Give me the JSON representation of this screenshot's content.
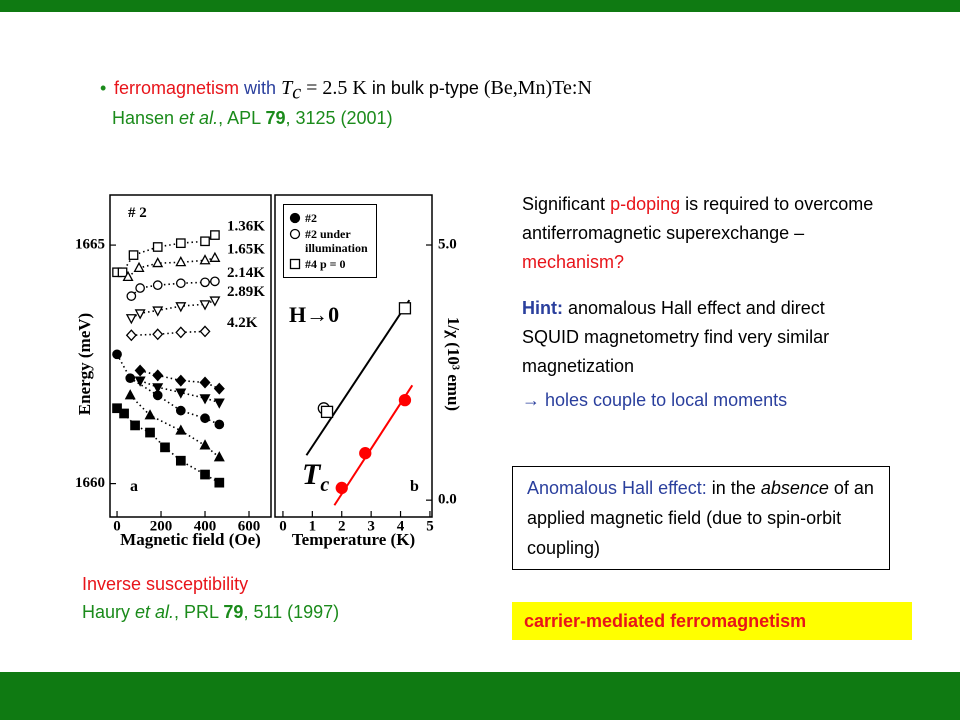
{
  "slide": {
    "bullet": [
      "ferromagnetism",
      " with ",
      "T",
      "c",
      " = 2.5 K",
      " in bulk p-type ",
      "(Be,Mn)Te:N"
    ],
    "citation_1": [
      "Hansen ",
      "et al.",
      ", APL ",
      "79",
      ", 3125 (2001)"
    ],
    "paragraph_1": [
      "Significant ",
      "p-doping",
      " is required to overcome antiferromagnetic superexchange – ",
      "mechanism?"
    ],
    "hint": [
      "Hint:",
      " anomalous Hall effect and direct SQUID magnetometry find very similar magnetization"
    ],
    "conclusion": "→ holes couple to local moments",
    "definition": [
      "Anomalous Hall effect:",
      " in the ",
      "absence",
      " of an applied magnetic field (due to spin-orbit coupling)"
    ],
    "highlight": "carrier-mediated ferromagnetism",
    "figure_caption": "Inverse susceptibility",
    "citation_2": [
      "Haury ",
      "et al.",
      ", PRL ",
      "79",
      ", 511 (1997)"
    ]
  },
  "chart_data": [
    {
      "type": "scatter",
      "xlabel": "Magnetic field (Oe)",
      "ylabel": "Energy (meV)",
      "sample_label": "# 2",
      "panel_label": "a",
      "xlim": [
        -32,
        700
      ],
      "xticks": [
        0,
        200,
        400,
        600
      ],
      "ylim": [
        1659.3,
        1666.05
      ],
      "yticks": [
        1660,
        1665
      ],
      "series": [
        {
          "name": "1.36K",
          "marker": "square",
          "filled": false,
          "line": "dotted",
          "color": "#000000",
          "x": [
            0,
            25,
            75,
            185,
            290,
            400,
            445
          ],
          "values": [
            1664.43,
            1664.43,
            1664.79,
            1664.96,
            1665.04,
            1665.08,
            1665.21
          ]
        },
        {
          "name": "1.65K",
          "marker": "triangle",
          "filled": false,
          "line": "dotted",
          "color": "#000000",
          "x": [
            50,
            100,
            185,
            290,
            400,
            445
          ],
          "values": [
            1664.33,
            1664.52,
            1664.62,
            1664.64,
            1664.68,
            1664.73
          ]
        },
        {
          "name": "2.14K",
          "marker": "circle",
          "filled": false,
          "line": "dotted",
          "color": "#000000",
          "x": [
            65,
            105,
            185,
            290,
            400,
            445
          ],
          "values": [
            1663.93,
            1664.1,
            1664.16,
            1664.2,
            1664.22,
            1664.24
          ]
        },
        {
          "name": "2.89K",
          "marker": "triangle-down",
          "filled": false,
          "line": "dotted",
          "color": "#000000",
          "x": [
            65,
            105,
            185,
            290,
            400,
            445
          ],
          "values": [
            1663.47,
            1663.57,
            1663.63,
            1663.72,
            1663.76,
            1663.84
          ]
        },
        {
          "name": "4.2K",
          "marker": "diamond",
          "filled": false,
          "line": "dotted",
          "color": "#000000",
          "x": [
            65,
            185,
            290,
            400
          ],
          "values": [
            1663.11,
            1663.13,
            1663.17,
            1663.19
          ]
        },
        {
          "marker": "diamond",
          "filled": true,
          "line": "dotted",
          "color": "#000000",
          "x": [
            105,
            185,
            290,
            400,
            465
          ],
          "values": [
            1662.37,
            1662.27,
            1662.16,
            1662.12,
            1661.99
          ]
        },
        {
          "marker": "triangle-down",
          "filled": true,
          "line": "dotted",
          "color": "#000000",
          "x": [
            105,
            185,
            290,
            400,
            465
          ],
          "values": [
            1662.16,
            1662.02,
            1661.91,
            1661.79,
            1661.7
          ]
        },
        {
          "marker": "circle",
          "filled": true,
          "line": "dotted",
          "color": "#000000",
          "x": [
            0,
            60,
            185,
            290,
            400,
            465
          ],
          "values": [
            1662.71,
            1662.21,
            1661.85,
            1661.53,
            1661.37,
            1661.24
          ]
        },
        {
          "marker": "triangle",
          "filled": true,
          "line": "dotted",
          "color": "#000000",
          "x": [
            60,
            150,
            290,
            400,
            465
          ],
          "values": [
            1661.85,
            1661.43,
            1661.11,
            1660.8,
            1660.55
          ]
        },
        {
          "marker": "square",
          "filled": true,
          "line": "dotted",
          "color": "#000000",
          "x": [
            0,
            32,
            82,
            150,
            218,
            290,
            400,
            465
          ],
          "values": [
            1661.58,
            1661.47,
            1661.22,
            1661.07,
            1660.76,
            1660.48,
            1660.19,
            1660.02
          ]
        }
      ]
    },
    {
      "type": "scatter",
      "xlabel": "Temperature (K)",
      "ylabel": "1/χ (10³ emu)",
      "panel_label": "b",
      "h_annotation": "H→0",
      "tc_annotation": {
        "main": "T",
        "sub": "c"
      },
      "xlim": [
        -0.27,
        5.07
      ],
      "xticks": [
        0,
        1,
        2,
        3,
        4,
        5
      ],
      "ylim": [
        -0.33,
        5.98
      ],
      "yticks": [
        {
          "value": 0,
          "label": "0.0"
        },
        {
          "value": 5,
          "label": "5.0"
        }
      ],
      "series": [
        {
          "line": "solid",
          "color": "#000000",
          "x": [
            0.8,
            4.3
          ],
          "values": [
            0.88,
            3.92
          ]
        },
        {
          "line": "solid",
          "color": "#ff0000",
          "x": [
            1.75,
            4.4
          ],
          "values": [
            -0.1,
            2.25
          ]
        },
        {
          "name": "#2",
          "marker": "circle",
          "filled": true,
          "color": "#ff0000",
          "x": [
            2.0,
            2.8,
            4.15
          ],
          "values": [
            0.24,
            0.92,
            1.96
          ]
        },
        {
          "name": "#2 under illumination",
          "marker": "circle",
          "filled": false,
          "color": "#000000",
          "x": [
            1.39
          ],
          "values": [
            1.8
          ]
        },
        {
          "name": "#4 p = 0",
          "marker": "square",
          "filled": false,
          "color": "#000000",
          "x": [
            1.5,
            4.15
          ],
          "values": [
            1.73,
            3.76
          ]
        }
      ]
    }
  ]
}
